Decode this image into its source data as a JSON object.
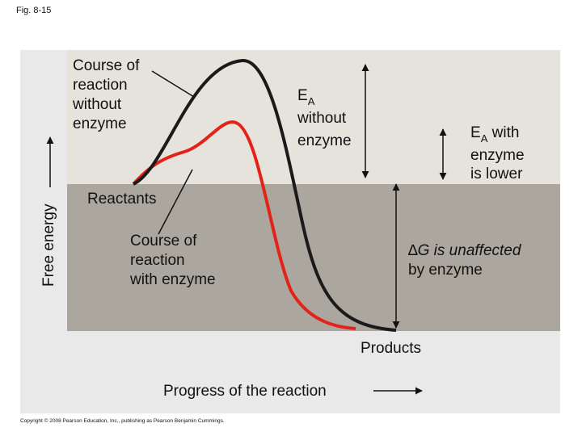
{
  "figure_label": "Fig. 8-15",
  "colors": {
    "upper_band": "#e6e3dd",
    "lower_band": "#aca79e",
    "curve_without_enzyme": "#1a1a1a",
    "curve_with_enzyme": "#e2231a",
    "arrow": "#111111"
  },
  "labels": {
    "course_without": [
      "Course of",
      "reaction",
      "without",
      "enzyme"
    ],
    "ea_without": {
      "main": "E",
      "sub": "A",
      "lines": [
        "without",
        "enzyme"
      ]
    },
    "ea_with": {
      "main": "E",
      "sub": "A",
      "rest": " with",
      "lines": [
        "enzyme",
        "is lower"
      ]
    },
    "reactants": "Reactants",
    "course_with": [
      "Course of",
      "reaction",
      "with enzyme"
    ],
    "delta_g": {
      "symbol": "∆",
      "rest": "G is unaffected",
      "line2": "by enzyme"
    },
    "products": "Products",
    "x_axis": "Progress of the reaction",
    "y_axis": "Free energy"
  },
  "copyright": "Copyright © 2008 Pearson Education, Inc., publishing as Pearson Benjamin Cummings."
}
